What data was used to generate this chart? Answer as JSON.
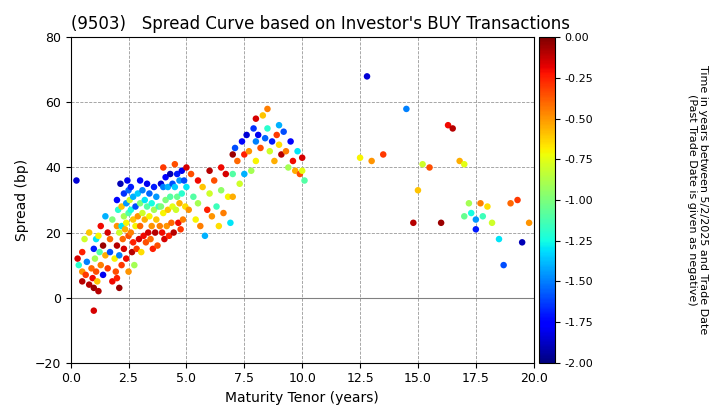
{
  "title": "(9503)   Spread Curve based on Investor's BUY Transactions",
  "xlabel": "Maturity Tenor (years)",
  "ylabel": "Spread (bp)",
  "colorbar_label": "Time in years between 5/2/2025 and Trade Date\n(Past Trade Date is given as negative)",
  "xlim": [
    0.0,
    20.0
  ],
  "ylim": [
    -20,
    80
  ],
  "xticks": [
    0.0,
    2.5,
    5.0,
    7.5,
    10.0,
    12.5,
    15.0,
    17.5,
    20.0
  ],
  "yticks": [
    -20,
    0,
    20,
    40,
    60,
    80
  ],
  "cmap_min": -2.0,
  "cmap_max": 0.0,
  "cbar_ticks": [
    0.0,
    -0.25,
    -0.5,
    -0.75,
    -1.0,
    -1.25,
    -1.5,
    -1.75,
    -2.0
  ],
  "scatter_data": [
    [
      0.25,
      36,
      -1.85
    ],
    [
      0.3,
      12,
      -0.15
    ],
    [
      0.35,
      10,
      -1.2
    ],
    [
      0.5,
      14,
      -0.25
    ],
    [
      0.5,
      8,
      -0.5
    ],
    [
      0.5,
      5,
      -0.1
    ],
    [
      0.6,
      18,
      -0.8
    ],
    [
      0.65,
      7,
      -0.3
    ],
    [
      0.7,
      11,
      -1.5
    ],
    [
      0.8,
      4,
      -0.1
    ],
    [
      0.8,
      20,
      -0.6
    ],
    [
      0.9,
      9,
      -0.4
    ],
    [
      0.95,
      6,
      -0.2
    ],
    [
      1.0,
      15,
      -1.7
    ],
    [
      1.0,
      3,
      -0.05
    ],
    [
      1.0,
      -4,
      -0.15
    ],
    [
      1.05,
      12,
      -0.9
    ],
    [
      1.1,
      18,
      -1.3
    ],
    [
      1.1,
      8,
      -0.35
    ],
    [
      1.15,
      5,
      -0.6
    ],
    [
      1.2,
      19,
      -0.7
    ],
    [
      1.2,
      2,
      -0.1
    ],
    [
      1.25,
      14,
      -1.1
    ],
    [
      1.3,
      10,
      -0.45
    ],
    [
      1.3,
      22,
      -0.2
    ],
    [
      1.4,
      7,
      -1.8
    ],
    [
      1.4,
      16,
      -0.05
    ],
    [
      1.5,
      13,
      -0.55
    ],
    [
      1.5,
      25,
      -1.4
    ],
    [
      1.6,
      9,
      -0.3
    ],
    [
      1.6,
      20,
      -0.15
    ],
    [
      1.7,
      14,
      -1.6
    ],
    [
      1.7,
      18,
      -0.4
    ],
    [
      1.8,
      5,
      -0.2
    ],
    [
      1.8,
      24,
      -1.0
    ],
    [
      1.9,
      12,
      -0.7
    ],
    [
      1.95,
      8,
      -0.35
    ],
    [
      2.0,
      30,
      -1.75
    ],
    [
      2.0,
      22,
      -0.5
    ],
    [
      2.0,
      16,
      -0.1
    ],
    [
      2.0,
      6,
      -0.25
    ],
    [
      2.05,
      27,
      -1.2
    ],
    [
      2.1,
      20,
      -0.8
    ],
    [
      2.1,
      13,
      -1.5
    ],
    [
      2.1,
      3,
      -0.05
    ],
    [
      2.15,
      35,
      -1.9
    ],
    [
      2.2,
      28,
      -0.6
    ],
    [
      2.2,
      22,
      -1.3
    ],
    [
      2.2,
      10,
      -0.3
    ],
    [
      2.25,
      18,
      -0.4
    ],
    [
      2.3,
      32,
      -1.65
    ],
    [
      2.3,
      25,
      -0.9
    ],
    [
      2.3,
      15,
      -0.15
    ],
    [
      2.35,
      21,
      -0.55
    ],
    [
      2.4,
      29,
      -1.45
    ],
    [
      2.4,
      23,
      -0.7
    ],
    [
      2.4,
      12,
      -0.2
    ],
    [
      2.45,
      36,
      -1.8
    ],
    [
      2.5,
      33,
      -1.55
    ],
    [
      2.5,
      26,
      -1.1
    ],
    [
      2.5,
      19,
      -0.35
    ],
    [
      2.5,
      8,
      -0.5
    ],
    [
      2.55,
      30,
      -0.8
    ],
    [
      2.6,
      34,
      -1.7
    ],
    [
      2.6,
      27,
      -1.25
    ],
    [
      2.6,
      20,
      -0.45
    ],
    [
      2.65,
      14,
      -0.1
    ],
    [
      2.7,
      31,
      -1.4
    ],
    [
      2.7,
      24,
      -0.6
    ],
    [
      2.7,
      17,
      -0.25
    ],
    [
      2.75,
      10,
      -0.9
    ],
    [
      2.8,
      28,
      -1.6
    ],
    [
      2.8,
      22,
      -0.7
    ],
    [
      2.85,
      15,
      -0.3
    ],
    [
      2.9,
      32,
      -1.35
    ],
    [
      2.9,
      25,
      -0.5
    ],
    [
      2.95,
      18,
      -0.15
    ],
    [
      3.0,
      36,
      -1.75
    ],
    [
      3.0,
      29,
      -1.0
    ],
    [
      3.0,
      22,
      -0.4
    ],
    [
      3.05,
      14,
      -0.65
    ],
    [
      3.1,
      33,
      -1.5
    ],
    [
      3.1,
      26,
      -0.8
    ],
    [
      3.15,
      19,
      -0.2
    ],
    [
      3.2,
      30,
      -1.3
    ],
    [
      3.2,
      24,
      -0.55
    ],
    [
      3.25,
      17,
      -0.35
    ],
    [
      3.3,
      35,
      -1.8
    ],
    [
      3.3,
      28,
      -1.1
    ],
    [
      3.35,
      20,
      -0.15
    ],
    [
      3.4,
      32,
      -1.55
    ],
    [
      3.4,
      25,
      -0.7
    ],
    [
      3.45,
      18,
      -0.4
    ],
    [
      3.5,
      29,
      -1.25
    ],
    [
      3.5,
      22,
      -0.5
    ],
    [
      3.55,
      15,
      -0.25
    ],
    [
      3.6,
      34,
      -1.7
    ],
    [
      3.6,
      27,
      -0.9
    ],
    [
      3.65,
      20,
      -0.1
    ],
    [
      3.7,
      31,
      -1.45
    ],
    [
      3.7,
      24,
      -0.6
    ],
    [
      3.75,
      16,
      -0.35
    ],
    [
      3.8,
      28,
      -1.15
    ],
    [
      3.85,
      22,
      -0.45
    ],
    [
      3.9,
      35,
      -1.85
    ],
    [
      3.9,
      28,
      -1.0
    ],
    [
      3.95,
      20,
      -0.2
    ],
    [
      4.0,
      40,
      -0.3
    ],
    [
      4.0,
      34,
      -1.5
    ],
    [
      4.0,
      26,
      -0.7
    ],
    [
      4.05,
      18,
      -0.15
    ],
    [
      4.1,
      37,
      -1.75
    ],
    [
      4.1,
      30,
      -1.0
    ],
    [
      4.15,
      22,
      -0.5
    ],
    [
      4.2,
      34,
      -1.4
    ],
    [
      4.2,
      27,
      -0.6
    ],
    [
      4.25,
      19,
      -0.25
    ],
    [
      4.3,
      38,
      -1.9
    ],
    [
      4.3,
      31,
      -1.1
    ],
    [
      4.35,
      23,
      -0.4
    ],
    [
      4.4,
      35,
      -1.6
    ],
    [
      4.4,
      28,
      -0.75
    ],
    [
      4.45,
      20,
      -0.1
    ],
    [
      4.5,
      41,
      -0.35
    ],
    [
      4.5,
      34,
      -1.35
    ],
    [
      4.55,
      27,
      -0.8
    ],
    [
      4.6,
      38,
      -1.7
    ],
    [
      4.6,
      31,
      -1.05
    ],
    [
      4.65,
      23,
      -0.2
    ],
    [
      4.7,
      36,
      -1.45
    ],
    [
      4.7,
      29,
      -0.55
    ],
    [
      4.75,
      21,
      -0.3
    ],
    [
      4.8,
      39,
      -1.8
    ],
    [
      4.8,
      32,
      -1.2
    ],
    [
      4.85,
      24,
      -0.45
    ],
    [
      4.9,
      36,
      -1.6
    ],
    [
      4.95,
      28,
      -0.65
    ],
    [
      5.0,
      40,
      -0.15
    ],
    [
      5.0,
      34,
      -1.3
    ],
    [
      5.1,
      27,
      -0.5
    ],
    [
      5.2,
      38,
      -0.35
    ],
    [
      5.3,
      31,
      -1.1
    ],
    [
      5.4,
      24,
      -0.7
    ],
    [
      5.5,
      36,
      -0.2
    ],
    [
      5.5,
      29,
      -0.9
    ],
    [
      5.6,
      22,
      -0.45
    ],
    [
      5.7,
      34,
      -0.6
    ],
    [
      5.8,
      19,
      -1.4
    ],
    [
      5.9,
      27,
      -0.25
    ],
    [
      6.0,
      39,
      -0.1
    ],
    [
      6.0,
      32,
      -0.8
    ],
    [
      6.1,
      25,
      -0.5
    ],
    [
      6.2,
      36,
      -0.35
    ],
    [
      6.3,
      28,
      -1.15
    ],
    [
      6.4,
      22,
      -0.65
    ],
    [
      6.5,
      40,
      -0.2
    ],
    [
      6.5,
      33,
      -0.95
    ],
    [
      6.6,
      26,
      -0.45
    ],
    [
      6.7,
      38,
      -0.15
    ],
    [
      6.8,
      31,
      -0.7
    ],
    [
      6.9,
      23,
      -1.3
    ],
    [
      7.0,
      44,
      -0.05
    ],
    [
      7.0,
      38,
      -1.1
    ],
    [
      7.0,
      31,
      -0.55
    ],
    [
      7.1,
      46,
      -1.6
    ],
    [
      7.2,
      42,
      -0.4
    ],
    [
      7.3,
      35,
      -0.8
    ],
    [
      7.4,
      48,
      -1.75
    ],
    [
      7.5,
      44,
      -0.25
    ],
    [
      7.5,
      38,
      -1.4
    ],
    [
      7.6,
      50,
      -1.85
    ],
    [
      7.7,
      45,
      -0.5
    ],
    [
      7.8,
      39,
      -0.9
    ],
    [
      7.9,
      52,
      -1.65
    ],
    [
      8.0,
      55,
      -0.15
    ],
    [
      8.0,
      48,
      -1.5
    ],
    [
      8.0,
      42,
      -0.7
    ],
    [
      8.1,
      50,
      -1.8
    ],
    [
      8.2,
      46,
      -0.35
    ],
    [
      8.3,
      56,
      -0.6
    ],
    [
      8.4,
      49,
      -1.55
    ],
    [
      8.5,
      58,
      -0.45
    ],
    [
      8.5,
      52,
      -1.2
    ],
    [
      8.6,
      45,
      -0.8
    ],
    [
      8.7,
      48,
      -1.7
    ],
    [
      8.8,
      42,
      -0.55
    ],
    [
      8.9,
      50,
      -0.3
    ],
    [
      9.0,
      53,
      -1.4
    ],
    [
      9.0,
      47,
      -0.65
    ],
    [
      9.1,
      44,
      -0.1
    ],
    [
      9.2,
      51,
      -1.6
    ],
    [
      9.3,
      45,
      -0.45
    ],
    [
      9.4,
      40,
      -0.9
    ],
    [
      9.5,
      48,
      -1.75
    ],
    [
      9.6,
      42,
      -0.2
    ],
    [
      9.7,
      39,
      -0.55
    ],
    [
      9.8,
      45,
      -1.3
    ],
    [
      9.9,
      38,
      -0.35
    ],
    [
      10.0,
      43,
      -0.15
    ],
    [
      10.0,
      39,
      -0.75
    ],
    [
      10.1,
      36,
      -1.1
    ],
    [
      12.5,
      43,
      -0.7
    ],
    [
      12.8,
      68,
      -1.85
    ],
    [
      13.0,
      42,
      -0.5
    ],
    [
      13.5,
      44,
      -0.3
    ],
    [
      14.5,
      58,
      -1.5
    ],
    [
      14.8,
      23,
      -0.1
    ],
    [
      15.0,
      33,
      -0.6
    ],
    [
      15.2,
      41,
      -0.8
    ],
    [
      15.5,
      40,
      -0.35
    ],
    [
      16.0,
      23,
      -0.05
    ],
    [
      16.3,
      53,
      -0.2
    ],
    [
      16.5,
      52,
      -0.1
    ],
    [
      16.8,
      42,
      -0.55
    ],
    [
      17.0,
      41,
      -0.75
    ],
    [
      17.0,
      25,
      -1.05
    ],
    [
      17.2,
      29,
      -0.9
    ],
    [
      17.3,
      26,
      -1.25
    ],
    [
      17.5,
      24,
      -1.45
    ],
    [
      17.5,
      21,
      -1.7
    ],
    [
      17.7,
      29,
      -0.45
    ],
    [
      17.8,
      25,
      -1.15
    ],
    [
      18.0,
      28,
      -0.65
    ],
    [
      18.2,
      23,
      -0.8
    ],
    [
      18.5,
      18,
      -1.3
    ],
    [
      18.7,
      10,
      -1.6
    ],
    [
      19.0,
      29,
      -0.4
    ],
    [
      19.3,
      30,
      -0.3
    ],
    [
      19.5,
      17,
      -1.9
    ],
    [
      19.8,
      23,
      -0.5
    ]
  ],
  "marker_size": 22,
  "bg_color": "#ffffff",
  "grid_color": "#999999",
  "title_fontsize": 12,
  "axis_fontsize": 10,
  "tick_fontsize": 9,
  "cbar_tick_fontsize": 8,
  "cbar_label_fontsize": 8
}
